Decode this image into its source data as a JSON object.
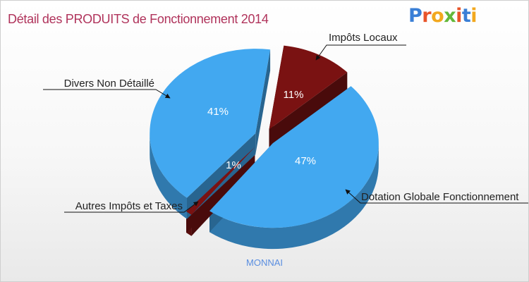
{
  "header": {
    "title": "Détail des PRODUITS de Fonctionnement 2014"
  },
  "brand": {
    "logo_letters": [
      {
        "ch": "P",
        "color": "#3a7fd6"
      },
      {
        "ch": "r",
        "color": "#e8542a"
      },
      {
        "ch": "o",
        "color": "#f2a81e"
      },
      {
        "ch": "x",
        "color": "#63b83a"
      },
      {
        "ch": "i",
        "color": "#e8542a"
      },
      {
        "ch": "t",
        "color": "#3a7fd6"
      },
      {
        "ch": "i",
        "color": "#f2a81e"
      }
    ]
  },
  "chart_data": {
    "type": "pie",
    "title": "Détail des PRODUITS de Fonctionnement 2014",
    "subtitle": "MONNAI",
    "slices": [
      {
        "label": "Impôts Locaux",
        "value": 11,
        "pct_label": "11%",
        "color": "#7a1212"
      },
      {
        "label": "Dotation Globale Fonctionnement",
        "value": 47,
        "pct_label": "47%",
        "color": "#42a8f0"
      },
      {
        "label": "Autres Impôts et Taxes",
        "value": 1,
        "pct_label": "1%",
        "color": "#7a1212"
      },
      {
        "label": "Divers Non Détaillé",
        "value": 41,
        "pct_label": "41%",
        "color": "#42a8f0"
      }
    ]
  },
  "footer": {
    "commune": "MONNAI"
  }
}
